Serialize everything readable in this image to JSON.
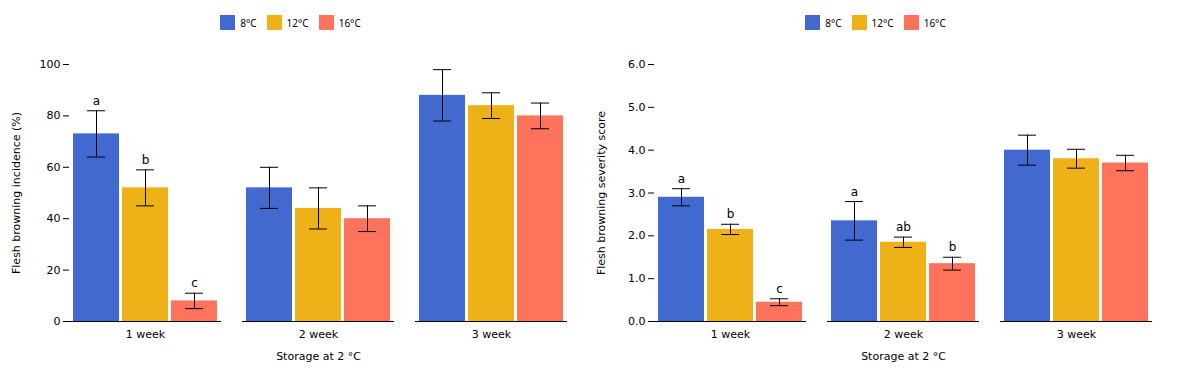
{
  "chart_data": [
    {
      "type": "bar",
      "xlabel": "Storage at 2 °C",
      "ylabel": "Flesh browning incidence (%)",
      "categories": [
        "1 week",
        "2 week",
        "3 week"
      ],
      "series": [
        {
          "name": "8°C",
          "values": [
            73,
            52,
            88
          ],
          "errors": [
            9,
            8,
            10
          ]
        },
        {
          "name": "12°C",
          "values": [
            52,
            44,
            84
          ],
          "errors": [
            7,
            8,
            5
          ]
        },
        {
          "name": "16°C",
          "values": [
            8,
            40,
            80
          ],
          "errors": [
            3,
            5,
            5
          ]
        }
      ],
      "annotations": [
        {
          "category": "1 week",
          "series": "8°C",
          "text": "a"
        },
        {
          "category": "1 week",
          "series": "12°C",
          "text": "b"
        },
        {
          "category": "1 week",
          "series": "16°C",
          "text": "c"
        }
      ],
      "ylim": [
        0,
        100
      ],
      "yticks": [
        0,
        20,
        40,
        60,
        80,
        100
      ],
      "grid": false,
      "legend": "top"
    },
    {
      "type": "bar",
      "xlabel": "Storage at 2 °C",
      "ylabel": "Flesh browning severity score",
      "categories": [
        "1 week",
        "2 week",
        "3 week"
      ],
      "series": [
        {
          "name": "8°C",
          "values": [
            2.9,
            2.35,
            4.0
          ],
          "errors": [
            0.2,
            0.45,
            0.35
          ]
        },
        {
          "name": "12°C",
          "values": [
            2.15,
            1.85,
            3.8
          ],
          "errors": [
            0.12,
            0.12,
            0.22
          ]
        },
        {
          "name": "16°C",
          "values": [
            0.45,
            1.35,
            3.7
          ],
          "errors": [
            0.08,
            0.15,
            0.18
          ]
        }
      ],
      "annotations": [
        {
          "category": "1 week",
          "series": "8°C",
          "text": "a"
        },
        {
          "category": "1 week",
          "series": "12°C",
          "text": "b"
        },
        {
          "category": "1 week",
          "series": "16°C",
          "text": "c"
        },
        {
          "category": "2 week",
          "series": "8°C",
          "text": "a"
        },
        {
          "category": "2 week",
          "series": "12°C",
          "text": "ab"
        },
        {
          "category": "2 week",
          "series": "16°C",
          "text": "b"
        }
      ],
      "ylim": [
        0,
        6
      ],
      "yticks": [
        0,
        1,
        2,
        3,
        4,
        5,
        6
      ],
      "grid": false,
      "legend": "top"
    }
  ]
}
